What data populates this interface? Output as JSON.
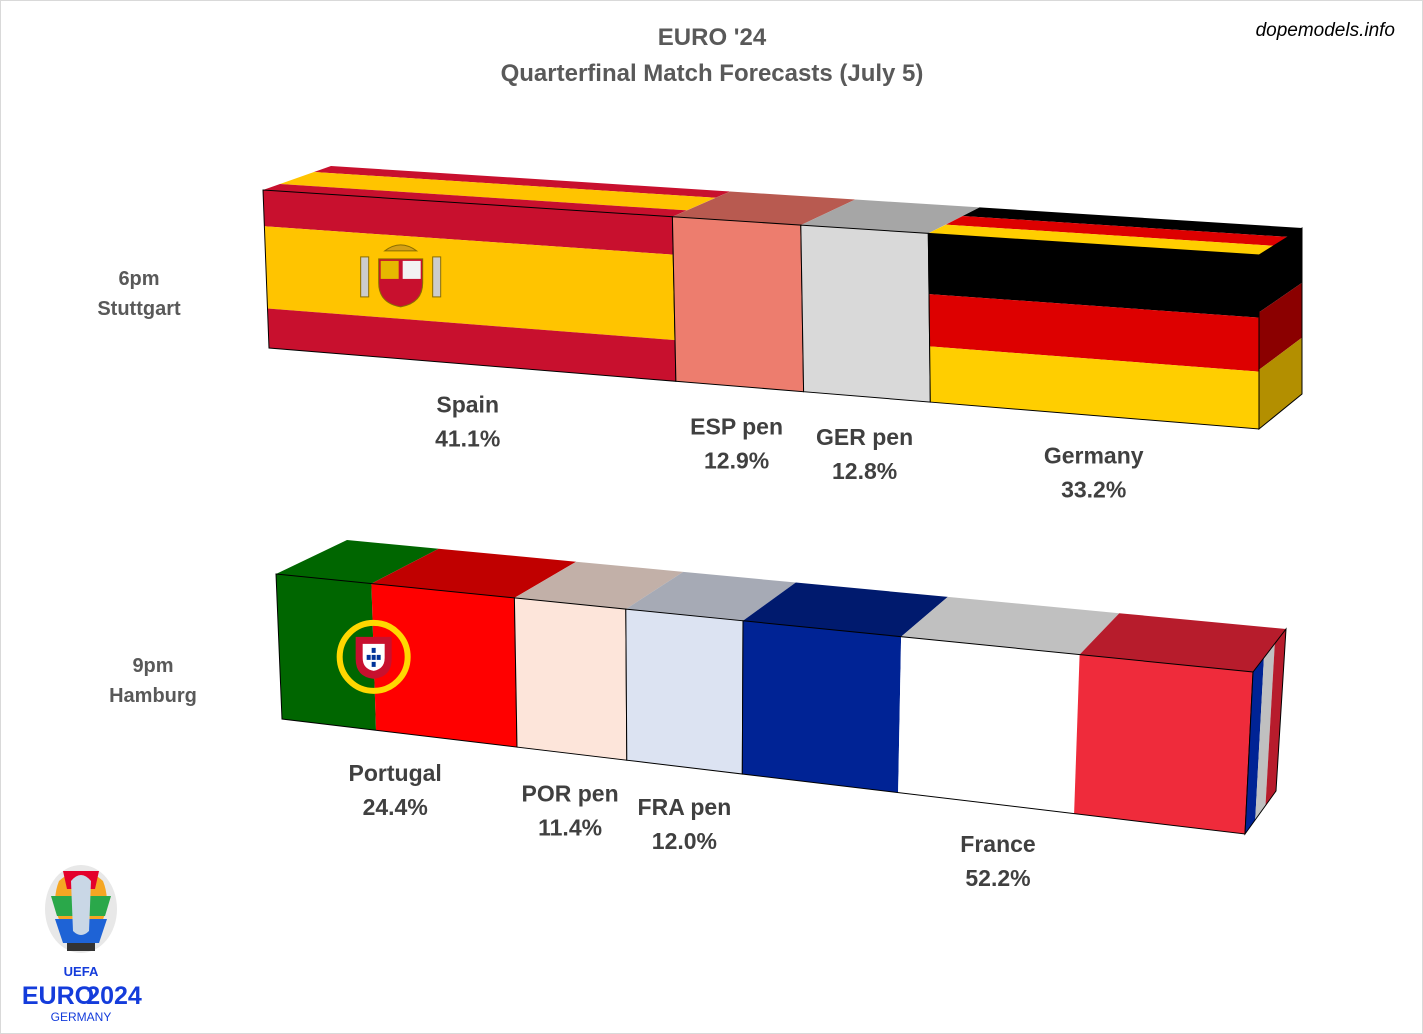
{
  "header": {
    "title_line1": "EURO '24",
    "title_line2": "Quarterfinal Match Forecasts (July 5)",
    "credit": "dopemodels.info"
  },
  "logo": {
    "org": "UEFA",
    "brand_left": "EURO",
    "brand_right": "2024",
    "country": "GERMANY"
  },
  "chart_data": [
    {
      "type": "bar",
      "stacked": true,
      "style": "3d horizontal stacked bar",
      "match_time": "6pm",
      "venue": "Stuttgart",
      "categories": [
        "Spain",
        "ESP pen",
        "GER pen",
        "Germany"
      ],
      "labels": [
        "41.1%",
        "12.9%",
        "12.8%",
        "33.2%"
      ],
      "values": [
        41.1,
        12.9,
        12.8,
        33.2
      ],
      "unit": "%",
      "colors": [
        "#c8102e",
        "#ed7d6e",
        "#d9d9d9",
        "#000000"
      ]
    },
    {
      "type": "bar",
      "stacked": true,
      "style": "3d horizontal stacked bar",
      "match_time": "9pm",
      "venue": "Hamburg",
      "categories": [
        "Portugal",
        "POR pen",
        "FRA pen",
        "France"
      ],
      "labels": [
        "24.4%",
        "11.4%",
        "12.0%",
        "52.2%"
      ],
      "values": [
        24.4,
        11.4,
        12.0,
        52.2
      ],
      "unit": "%",
      "colors": [
        "#006600",
        "#fde5da",
        "#dce3f2",
        "#002395"
      ]
    }
  ]
}
